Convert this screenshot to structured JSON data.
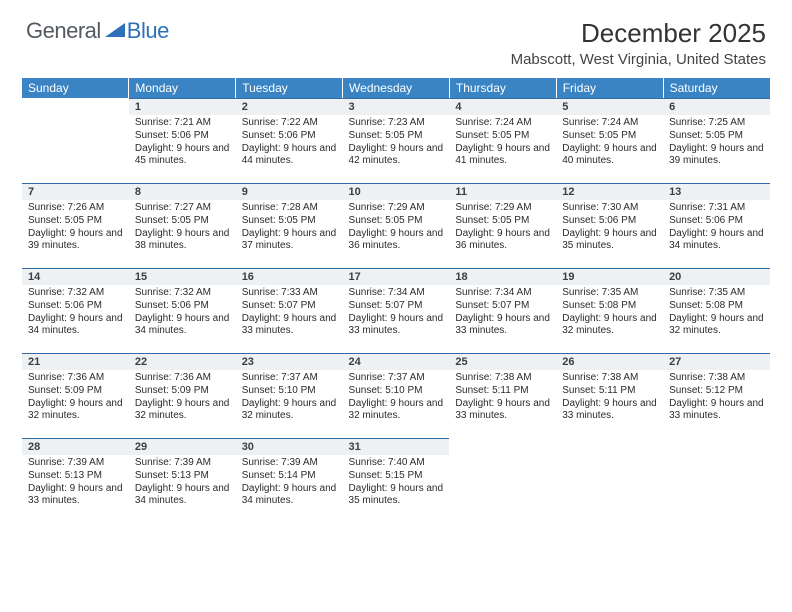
{
  "logo": {
    "general": "General",
    "blue": "Blue"
  },
  "title": "December 2025",
  "location": "Mabscott, West Virginia, United States",
  "colors": {
    "header_bg": "#3b84c4",
    "header_text": "#ffffff",
    "daynum_bg": "#eef1f3",
    "daynum_border": "#2f6ca8",
    "logo_gray": "#555a60",
    "logo_blue": "#2f71b8"
  },
  "weekdays": [
    "Sunday",
    "Monday",
    "Tuesday",
    "Wednesday",
    "Thursday",
    "Friday",
    "Saturday"
  ],
  "weeks": [
    [
      {
        "n": "",
        "sr": "",
        "ss": "",
        "dl": ""
      },
      {
        "n": "1",
        "sr": "7:21 AM",
        "ss": "5:06 PM",
        "dl": "9 hours and 45 minutes."
      },
      {
        "n": "2",
        "sr": "7:22 AM",
        "ss": "5:06 PM",
        "dl": "9 hours and 44 minutes."
      },
      {
        "n": "3",
        "sr": "7:23 AM",
        "ss": "5:05 PM",
        "dl": "9 hours and 42 minutes."
      },
      {
        "n": "4",
        "sr": "7:24 AM",
        "ss": "5:05 PM",
        "dl": "9 hours and 41 minutes."
      },
      {
        "n": "5",
        "sr": "7:24 AM",
        "ss": "5:05 PM",
        "dl": "9 hours and 40 minutes."
      },
      {
        "n": "6",
        "sr": "7:25 AM",
        "ss": "5:05 PM",
        "dl": "9 hours and 39 minutes."
      }
    ],
    [
      {
        "n": "7",
        "sr": "7:26 AM",
        "ss": "5:05 PM",
        "dl": "9 hours and 39 minutes."
      },
      {
        "n": "8",
        "sr": "7:27 AM",
        "ss": "5:05 PM",
        "dl": "9 hours and 38 minutes."
      },
      {
        "n": "9",
        "sr": "7:28 AM",
        "ss": "5:05 PM",
        "dl": "9 hours and 37 minutes."
      },
      {
        "n": "10",
        "sr": "7:29 AM",
        "ss": "5:05 PM",
        "dl": "9 hours and 36 minutes."
      },
      {
        "n": "11",
        "sr": "7:29 AM",
        "ss": "5:05 PM",
        "dl": "9 hours and 36 minutes."
      },
      {
        "n": "12",
        "sr": "7:30 AM",
        "ss": "5:06 PM",
        "dl": "9 hours and 35 minutes."
      },
      {
        "n": "13",
        "sr": "7:31 AM",
        "ss": "5:06 PM",
        "dl": "9 hours and 34 minutes."
      }
    ],
    [
      {
        "n": "14",
        "sr": "7:32 AM",
        "ss": "5:06 PM",
        "dl": "9 hours and 34 minutes."
      },
      {
        "n": "15",
        "sr": "7:32 AM",
        "ss": "5:06 PM",
        "dl": "9 hours and 34 minutes."
      },
      {
        "n": "16",
        "sr": "7:33 AM",
        "ss": "5:07 PM",
        "dl": "9 hours and 33 minutes."
      },
      {
        "n": "17",
        "sr": "7:34 AM",
        "ss": "5:07 PM",
        "dl": "9 hours and 33 minutes."
      },
      {
        "n": "18",
        "sr": "7:34 AM",
        "ss": "5:07 PM",
        "dl": "9 hours and 33 minutes."
      },
      {
        "n": "19",
        "sr": "7:35 AM",
        "ss": "5:08 PM",
        "dl": "9 hours and 32 minutes."
      },
      {
        "n": "20",
        "sr": "7:35 AM",
        "ss": "5:08 PM",
        "dl": "9 hours and 32 minutes."
      }
    ],
    [
      {
        "n": "21",
        "sr": "7:36 AM",
        "ss": "5:09 PM",
        "dl": "9 hours and 32 minutes."
      },
      {
        "n": "22",
        "sr": "7:36 AM",
        "ss": "5:09 PM",
        "dl": "9 hours and 32 minutes."
      },
      {
        "n": "23",
        "sr": "7:37 AM",
        "ss": "5:10 PM",
        "dl": "9 hours and 32 minutes."
      },
      {
        "n": "24",
        "sr": "7:37 AM",
        "ss": "5:10 PM",
        "dl": "9 hours and 32 minutes."
      },
      {
        "n": "25",
        "sr": "7:38 AM",
        "ss": "5:11 PM",
        "dl": "9 hours and 33 minutes."
      },
      {
        "n": "26",
        "sr": "7:38 AM",
        "ss": "5:11 PM",
        "dl": "9 hours and 33 minutes."
      },
      {
        "n": "27",
        "sr": "7:38 AM",
        "ss": "5:12 PM",
        "dl": "9 hours and 33 minutes."
      }
    ],
    [
      {
        "n": "28",
        "sr": "7:39 AM",
        "ss": "5:13 PM",
        "dl": "9 hours and 33 minutes."
      },
      {
        "n": "29",
        "sr": "7:39 AM",
        "ss": "5:13 PM",
        "dl": "9 hours and 34 minutes."
      },
      {
        "n": "30",
        "sr": "7:39 AM",
        "ss": "5:14 PM",
        "dl": "9 hours and 34 minutes."
      },
      {
        "n": "31",
        "sr": "7:40 AM",
        "ss": "5:15 PM",
        "dl": "9 hours and 35 minutes."
      },
      {
        "n": "",
        "sr": "",
        "ss": "",
        "dl": ""
      },
      {
        "n": "",
        "sr": "",
        "ss": "",
        "dl": ""
      },
      {
        "n": "",
        "sr": "",
        "ss": "",
        "dl": ""
      }
    ]
  ],
  "labels": {
    "sunrise": "Sunrise: ",
    "sunset": "Sunset: ",
    "daylight": "Daylight: "
  }
}
